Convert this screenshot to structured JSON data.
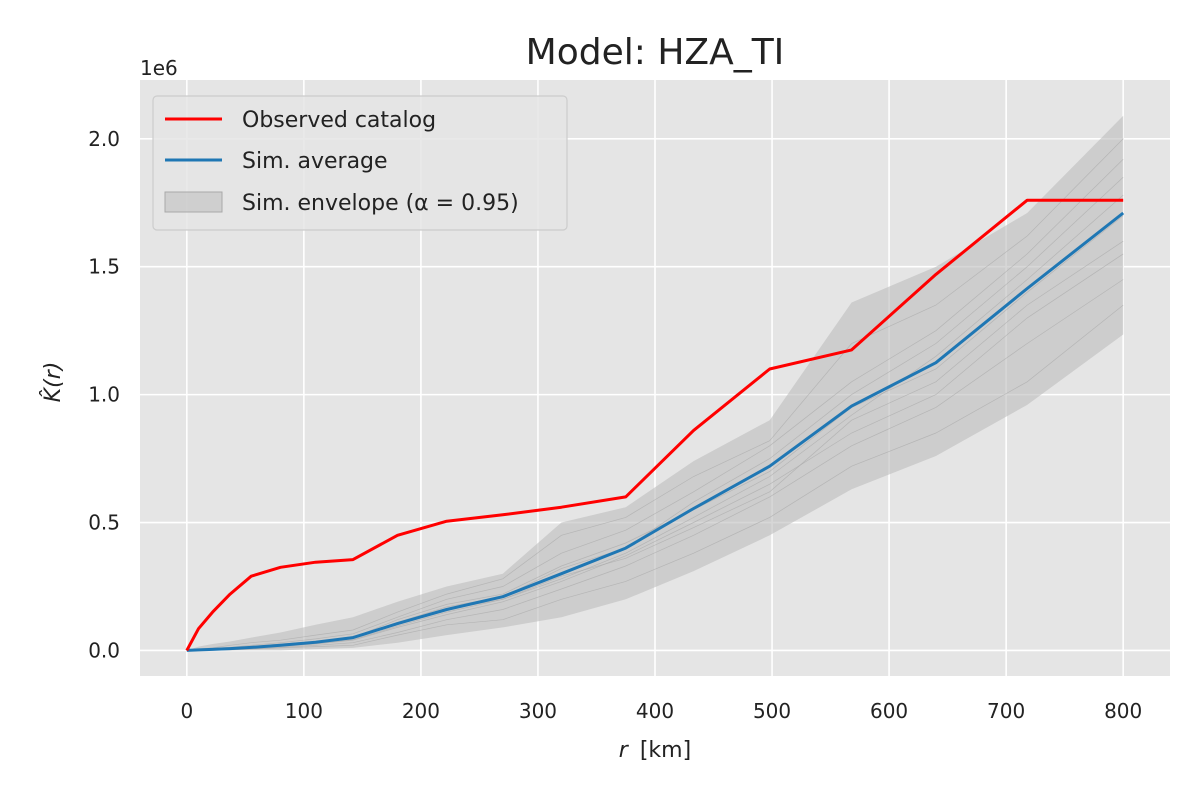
{
  "chart_data": {
    "type": "line",
    "title": "Model: HZA_TI",
    "xlabel_var": "r",
    "xlabel_unit": "[km]",
    "ylabel": "K̂(r)",
    "y_offset_text": "1e6",
    "xlim": [
      -40,
      840
    ],
    "ylim": [
      -0.1,
      2.23
    ],
    "xticks": [
      0,
      100,
      200,
      300,
      400,
      500,
      600,
      700,
      800
    ],
    "xtick_labels": [
      "0",
      "100",
      "200",
      "300",
      "400",
      "500",
      "600",
      "700",
      "800"
    ],
    "yticks": [
      0.0,
      0.5,
      1.0,
      1.5,
      2.0
    ],
    "ytick_labels": [
      "0.0",
      "0.5",
      "1.0",
      "1.5",
      "2.0"
    ],
    "y_units": "x 1e6",
    "grid": true,
    "legend_position": "top-left",
    "legend": [
      {
        "label": "Observed catalog",
        "kind": "line",
        "color": "#ff0000"
      },
      {
        "label": "Sim. average",
        "kind": "line",
        "color": "#1f77b4"
      },
      {
        "label": "Sim. envelope (α = 0.95)",
        "kind": "patch",
        "color": "#bdbdbd"
      }
    ],
    "series": [
      {
        "name": "Observed catalog",
        "color": "#ff0000",
        "x": [
          0,
          10,
          22,
          37,
          55,
          80,
          110,
          142,
          180,
          222,
          270,
          320,
          375,
          433,
          498,
          568,
          640,
          718,
          800
        ],
        "y": [
          0.0,
          0.085,
          0.15,
          0.22,
          0.29,
          0.325,
          0.345,
          0.355,
          0.45,
          0.505,
          0.53,
          0.56,
          0.6,
          0.86,
          1.1,
          1.175,
          1.47,
          1.76,
          1.76
        ]
      },
      {
        "name": "Sim. average",
        "color": "#1f77b4",
        "x": [
          0,
          10,
          22,
          37,
          55,
          80,
          110,
          142,
          180,
          222,
          270,
          320,
          375,
          433,
          498,
          568,
          640,
          718,
          800
        ],
        "y": [
          0.0,
          0.002,
          0.004,
          0.007,
          0.012,
          0.02,
          0.032,
          0.05,
          0.105,
          0.16,
          0.21,
          0.3,
          0.4,
          0.555,
          0.72,
          0.955,
          1.125,
          1.415,
          1.71
        ]
      },
      {
        "name": "Sim. envelope (α = 0.95)",
        "color": "#bdbdbd",
        "x": [
          0,
          10,
          22,
          37,
          55,
          80,
          110,
          142,
          180,
          222,
          270,
          320,
          375,
          433,
          498,
          568,
          640,
          718,
          800
        ],
        "lower": [
          0.0,
          0.0,
          0.0,
          0.0,
          0.0,
          0.0,
          0.005,
          0.01,
          0.03,
          0.06,
          0.09,
          0.13,
          0.2,
          0.31,
          0.45,
          0.63,
          0.76,
          0.96,
          1.235
        ],
        "upper": [
          0.0,
          0.015,
          0.025,
          0.035,
          0.05,
          0.07,
          0.1,
          0.13,
          0.19,
          0.25,
          0.3,
          0.5,
          0.56,
          0.74,
          0.9,
          1.36,
          1.5,
          1.71,
          2.09
        ]
      }
    ],
    "simulation_traces": {
      "color": "#8a8a8a",
      "x": [
        0,
        10,
        22,
        37,
        55,
        80,
        110,
        142,
        180,
        222,
        270,
        320,
        375,
        433,
        498,
        568,
        640,
        718,
        800
      ],
      "runs": [
        [
          0,
          0.003,
          0.006,
          0.01,
          0.016,
          0.025,
          0.035,
          0.05,
          0.12,
          0.18,
          0.22,
          0.33,
          0.42,
          0.55,
          0.7,
          0.95,
          1.1,
          1.4,
          1.7
        ],
        [
          0,
          0.001,
          0.002,
          0.004,
          0.008,
          0.015,
          0.025,
          0.04,
          0.09,
          0.14,
          0.19,
          0.27,
          0.37,
          0.5,
          0.65,
          0.85,
          1.0,
          1.3,
          1.55
        ],
        [
          0,
          0.005,
          0.01,
          0.02,
          0.03,
          0.04,
          0.06,
          0.08,
          0.15,
          0.22,
          0.28,
          0.45,
          0.52,
          0.68,
          0.82,
          1.2,
          1.35,
          1.62,
          2.0
        ],
        [
          0,
          0.0,
          0.001,
          0.002,
          0.005,
          0.01,
          0.015,
          0.02,
          0.06,
          0.1,
          0.12,
          0.2,
          0.27,
          0.38,
          0.52,
          0.72,
          0.85,
          1.05,
          1.35
        ],
        [
          0,
          0.002,
          0.004,
          0.007,
          0.012,
          0.02,
          0.03,
          0.05,
          0.11,
          0.17,
          0.21,
          0.32,
          0.4,
          0.58,
          0.75,
          1.0,
          1.2,
          1.5,
          1.85
        ],
        [
          0,
          0.004,
          0.008,
          0.012,
          0.02,
          0.03,
          0.045,
          0.065,
          0.13,
          0.2,
          0.25,
          0.38,
          0.47,
          0.62,
          0.8,
          1.05,
          1.25,
          1.55,
          1.92
        ],
        [
          0,
          0.001,
          0.003,
          0.005,
          0.009,
          0.017,
          0.027,
          0.042,
          0.095,
          0.15,
          0.2,
          0.29,
          0.36,
          0.48,
          0.62,
          0.9,
          1.05,
          1.35,
          1.6
        ],
        [
          0,
          0.002,
          0.005,
          0.008,
          0.013,
          0.022,
          0.033,
          0.055,
          0.1,
          0.16,
          0.2,
          0.28,
          0.38,
          0.52,
          0.68,
          0.92,
          1.15,
          1.45,
          1.78
        ],
        [
          0,
          0.0,
          0.002,
          0.003,
          0.006,
          0.012,
          0.02,
          0.03,
          0.07,
          0.12,
          0.16,
          0.24,
          0.33,
          0.45,
          0.6,
          0.8,
          0.95,
          1.2,
          1.45
        ]
      ]
    }
  }
}
